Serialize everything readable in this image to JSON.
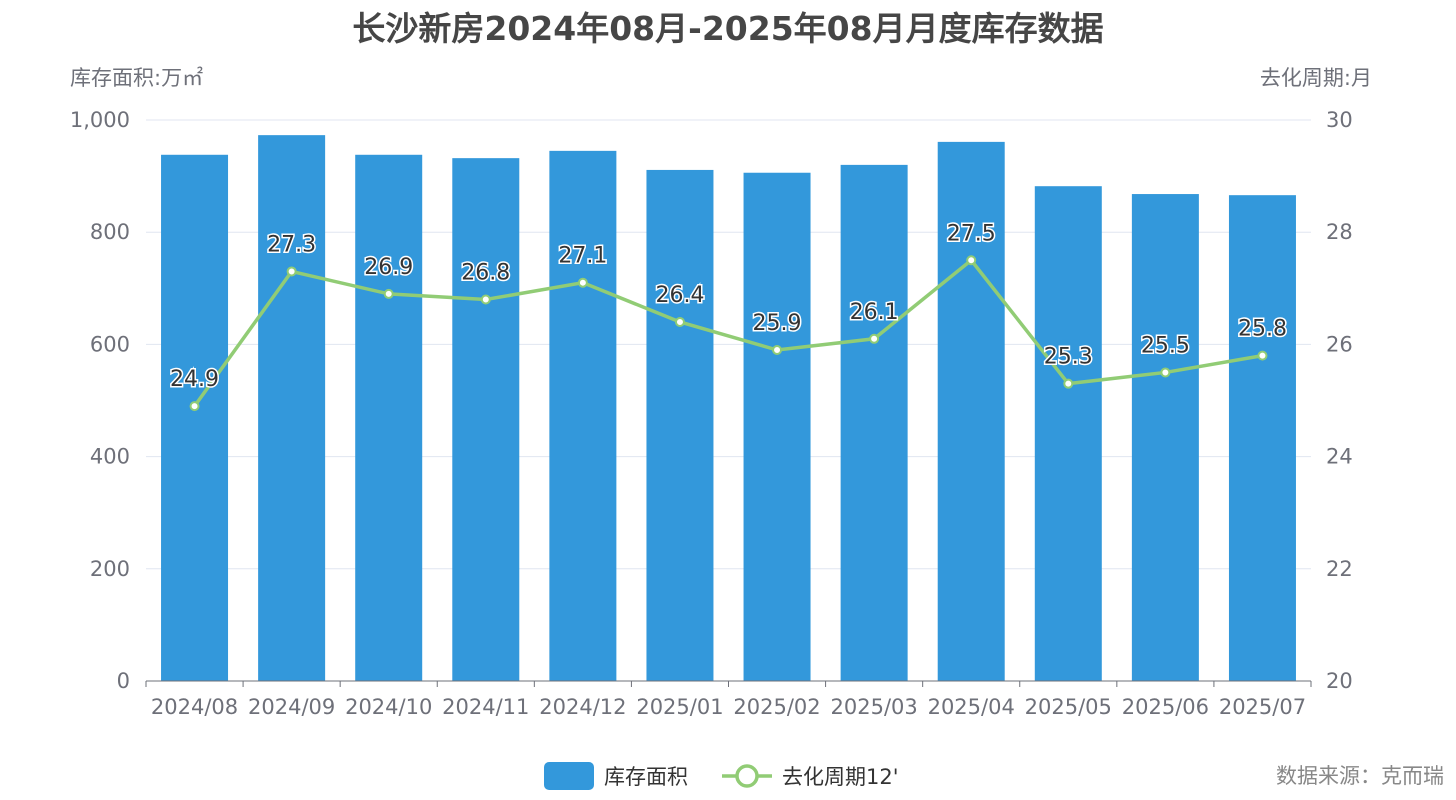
{
  "chart_data": {
    "type": "bar",
    "title": "长沙新房2024年08月-2025年08月月度库存数据",
    "categories": [
      "2024/08",
      "2024/09",
      "2024/10",
      "2024/11",
      "2024/12",
      "2025/01",
      "2025/02",
      "2025/03",
      "2025/04",
      "2025/05",
      "2025/06",
      "2025/07"
    ],
    "series": [
      {
        "name": "库存面积",
        "type": "bar",
        "axis": "left",
        "color": "#3398db",
        "values": [
          938,
          973,
          938,
          932,
          945,
          911,
          906,
          920,
          961,
          882,
          868,
          866
        ]
      },
      {
        "name": "去化周期12'",
        "type": "line",
        "axis": "right",
        "color": "#91cc75",
        "values": [
          24.9,
          27.3,
          26.9,
          26.8,
          27.1,
          26.4,
          25.9,
          26.1,
          27.5,
          25.3,
          25.5,
          25.8
        ],
        "labels": [
          "24.9",
          "27.3",
          "26.9",
          "26.8",
          "27.1",
          "26.4",
          "25.9",
          "26.1",
          "27.5",
          "25.3",
          "25.5",
          "25.8"
        ]
      }
    ],
    "ylabel": "库存面积:万㎡",
    "ylabel_right": "去化周期:月",
    "ylim": [
      0,
      1000
    ],
    "ylim_right": [
      20,
      30
    ],
    "yticks": [
      "0",
      "200",
      "400",
      "600",
      "800",
      "1,000"
    ],
    "yticks_right": [
      "20",
      "22",
      "24",
      "26",
      "28",
      "30"
    ],
    "grid": true,
    "legend": "bottom-center"
  },
  "source": "数据来源：克而瑞"
}
